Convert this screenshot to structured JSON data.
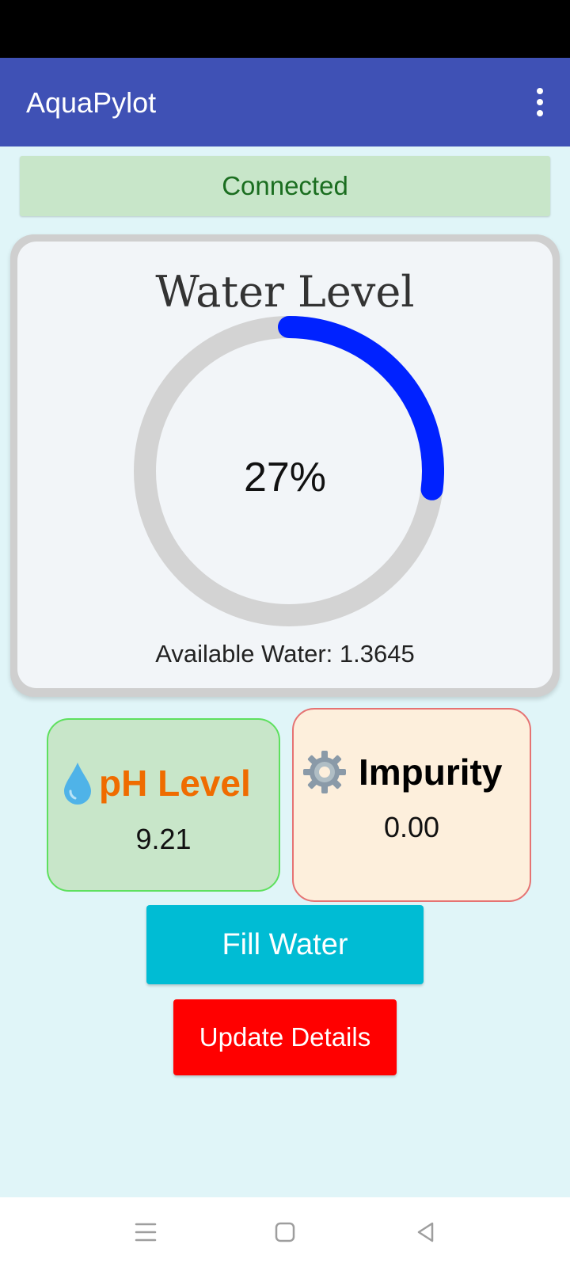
{
  "app": {
    "title": "AquaPylot",
    "accent": "#3f51b5"
  },
  "connection": {
    "status": "Connected",
    "color": "#c8e6c9"
  },
  "water_level": {
    "title": "Water Level",
    "percent_value": 27,
    "percent_label": "27%",
    "available_label": "Available Water: 1.3645",
    "progress_color": "#0022ff",
    "track_color": "#d3d3d3"
  },
  "ph": {
    "icon": "droplet-icon",
    "label": "pH Level",
    "value": "9.21"
  },
  "impurity": {
    "icon": "gear-icon",
    "label": "Impurity",
    "value": "0.00"
  },
  "actions": {
    "fill_label": "Fill Water",
    "update_label": "Update Details"
  },
  "nav": {
    "items": [
      "menu-icon",
      "home-icon",
      "back-icon"
    ]
  }
}
